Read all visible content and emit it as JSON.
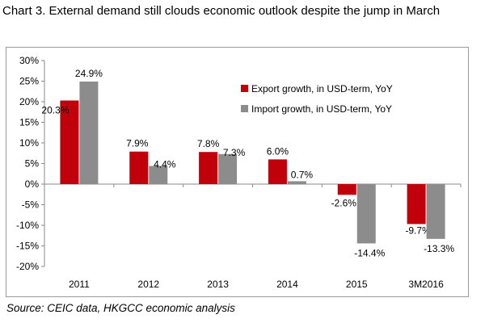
{
  "title": "Chart 3. External demand still clouds economic outlook despite the jump in March",
  "source": "Source: CEIC data, HKGCC economic analysis",
  "chart_data": {
    "type": "bar",
    "categories": [
      "2011",
      "2012",
      "2013",
      "2014",
      "2015",
      "3M2016"
    ],
    "series": [
      {
        "name": "Export growth, in USD-term, YoY",
        "color": "#c0000b",
        "values": [
          20.3,
          7.9,
          7.8,
          6.0,
          -2.6,
          -9.7
        ],
        "labels": [
          "20.3%",
          "7.9%",
          "7.8%",
          "6.0%",
          "-2.6%",
          "-9.7%"
        ]
      },
      {
        "name": "Import growth, in USD-term, YoY",
        "color": "#8c8c8c",
        "values": [
          24.9,
          4.4,
          7.3,
          0.7,
          -14.4,
          -13.3
        ],
        "labels": [
          "24.9%",
          "4.4%",
          "7.3%",
          "0.7%",
          "-14.4%",
          "-13.3%"
        ]
      }
    ],
    "yticks": [
      30,
      25,
      20,
      15,
      10,
      5,
      0,
      -5,
      -10,
      -15,
      -20
    ],
    "ytick_labels": [
      "30%",
      "25%",
      "20%",
      "15%",
      "10%",
      "5%",
      "0%",
      "-5%",
      "-10%",
      "-15%",
      "-20%"
    ],
    "ylim": [
      -20,
      30
    ],
    "xlabel": "",
    "ylabel": "",
    "grid": false,
    "legend_position": "right, upper-middle"
  }
}
